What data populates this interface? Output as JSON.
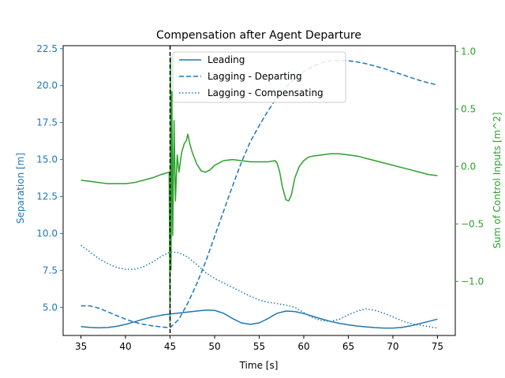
{
  "chart_data": {
    "type": "line",
    "title": "Compensation after Agent Departure",
    "xlabel": "Time [s]",
    "ylabel_left": "Separation [m]",
    "ylabel_right": "Sum of Control Inputs [m^2]",
    "xlim": [
      33.0,
      77.0
    ],
    "ylim_left": [
      3.1,
      22.7
    ],
    "ylim_right": [
      -1.47,
      1.05
    ],
    "xticks": [
      35,
      40,
      45,
      50,
      55,
      60,
      65,
      70,
      75
    ],
    "xtick_labels": [
      "35",
      "40",
      "45",
      "50",
      "55",
      "60",
      "65",
      "70",
      "75"
    ],
    "yticks_left": [
      5.0,
      7.5,
      10.0,
      12.5,
      15.0,
      17.5,
      20.0,
      22.5
    ],
    "ytick_labels_left": [
      "5.0",
      "7.5",
      "10.0",
      "12.5",
      "15.0",
      "17.5",
      "20.0",
      "22.5"
    ],
    "yticks_right": [
      -1.0,
      -0.5,
      0.0,
      0.5,
      1.0
    ],
    "ytick_labels_right": [
      "−1.0",
      "−0.5",
      "0.0",
      "0.5",
      "1.0"
    ],
    "grid": false,
    "legend_placement": "top-center",
    "vline_x": 45,
    "colors": {
      "left_axis": "#1f77b4",
      "right_axis": "#2ca02c",
      "vline": "#000000"
    },
    "series": [
      {
        "name": "Leading",
        "axis": "left",
        "style": "solid",
        "color": "#1f77b4",
        "x": [
          35,
          36,
          37,
          38,
          39,
          40,
          41,
          42,
          43,
          44,
          45,
          46,
          47,
          48,
          49,
          50,
          51,
          52,
          53,
          54,
          55,
          56,
          57,
          58,
          59,
          60,
          61,
          62,
          63,
          64,
          65,
          66,
          67,
          68,
          69,
          70,
          71,
          72,
          73,
          74,
          75
        ],
        "y": [
          3.7,
          3.65,
          3.62,
          3.64,
          3.72,
          3.85,
          4.02,
          4.2,
          4.35,
          4.47,
          4.55,
          4.62,
          4.68,
          4.75,
          4.82,
          4.8,
          4.6,
          4.25,
          3.95,
          3.85,
          3.95,
          4.25,
          4.6,
          4.75,
          4.72,
          4.58,
          4.4,
          4.22,
          4.05,
          3.92,
          3.82,
          3.74,
          3.68,
          3.63,
          3.6,
          3.6,
          3.65,
          3.75,
          3.9,
          4.05,
          4.2
        ]
      },
      {
        "name": "Lagging - Departing",
        "axis": "left",
        "style": "dashed",
        "color": "#1f77b4",
        "x": [
          35,
          36,
          37,
          38,
          39,
          40,
          41,
          42,
          43,
          44,
          45,
          46,
          47,
          48,
          49,
          50,
          51,
          52,
          53,
          54,
          55,
          56,
          57,
          58,
          59,
          60,
          61,
          62,
          63,
          64,
          65,
          66,
          67,
          68,
          69,
          70,
          71,
          72,
          73,
          74,
          75
        ],
        "y": [
          5.1,
          5.1,
          4.95,
          4.7,
          4.45,
          4.2,
          4.0,
          3.85,
          3.75,
          3.68,
          3.62,
          4.2,
          5.3,
          6.6,
          8.1,
          9.8,
          11.5,
          13.2,
          14.8,
          16.2,
          17.3,
          18.3,
          19.2,
          19.9,
          20.5,
          20.95,
          21.3,
          21.55,
          21.68,
          21.7,
          21.68,
          21.6,
          21.48,
          21.32,
          21.15,
          20.95,
          20.75,
          20.55,
          20.35,
          20.18,
          20.05
        ]
      },
      {
        "name": "Lagging - Compensating",
        "axis": "left",
        "style": "dotted",
        "color": "#1f77b4",
        "x": [
          35,
          36,
          37,
          38,
          39,
          40,
          41,
          42,
          43,
          44,
          45,
          46,
          47,
          48,
          49,
          50,
          51,
          52,
          53,
          54,
          55,
          56,
          57,
          58,
          59,
          60,
          61,
          62,
          63,
          64,
          65,
          66,
          67,
          68,
          69,
          70,
          71,
          72,
          73,
          74,
          75
        ],
        "y": [
          9.2,
          8.75,
          8.3,
          7.95,
          7.7,
          7.57,
          7.58,
          7.75,
          8.05,
          8.45,
          8.75,
          8.7,
          8.4,
          7.9,
          7.35,
          6.95,
          6.65,
          6.35,
          6.05,
          5.75,
          5.5,
          5.35,
          5.25,
          5.15,
          5.0,
          4.65,
          4.3,
          4.1,
          4.05,
          4.2,
          4.5,
          4.75,
          4.9,
          4.8,
          4.6,
          4.35,
          4.1,
          3.9,
          3.8,
          3.7,
          3.6
        ]
      },
      {
        "name": "",
        "axis": "right",
        "style": "solid",
        "color": "#2ca02c",
        "x": [
          35,
          36,
          37,
          38,
          39,
          40,
          41,
          42,
          43,
          44,
          44.9,
          45.0,
          45.05,
          45.1,
          45.2,
          45.3,
          45.45,
          45.6,
          45.8,
          46.0,
          46.3,
          46.6,
          46.8,
          47.0,
          47.2,
          47.5,
          48.0,
          48.5,
          49.0,
          49.5,
          50.0,
          51.0,
          52.0,
          53.0,
          54.0,
          55.0,
          56.0,
          56.8,
          57.0,
          57.3,
          57.6,
          58.0,
          58.3,
          58.6,
          59.0,
          59.5,
          60.0,
          60.5,
          61.0,
          62.0,
          63.0,
          64.0,
          65.0,
          66.0,
          67.0,
          68.0,
          69.0,
          70.0,
          71.0,
          72.0,
          73.0,
          74.0,
          75.0
        ],
        "y": [
          -0.12,
          -0.13,
          -0.14,
          -0.15,
          -0.15,
          -0.15,
          -0.14,
          -0.12,
          -0.1,
          -0.07,
          -0.05,
          -1.35,
          0.95,
          -0.9,
          0.65,
          -0.6,
          0.4,
          -0.3,
          0.1,
          -0.05,
          0.12,
          0.2,
          0.22,
          0.28,
          0.2,
          0.12,
          0.02,
          -0.04,
          -0.05,
          -0.03,
          0.01,
          0.05,
          0.06,
          0.05,
          0.04,
          0.04,
          0.04,
          0.05,
          0.03,
          -0.05,
          -0.18,
          -0.29,
          -0.3,
          -0.25,
          -0.1,
          0.0,
          0.05,
          0.08,
          0.09,
          0.1,
          0.11,
          0.11,
          0.1,
          0.09,
          0.07,
          0.05,
          0.03,
          0.01,
          -0.01,
          -0.03,
          -0.05,
          -0.07,
          -0.08
        ]
      }
    ]
  }
}
